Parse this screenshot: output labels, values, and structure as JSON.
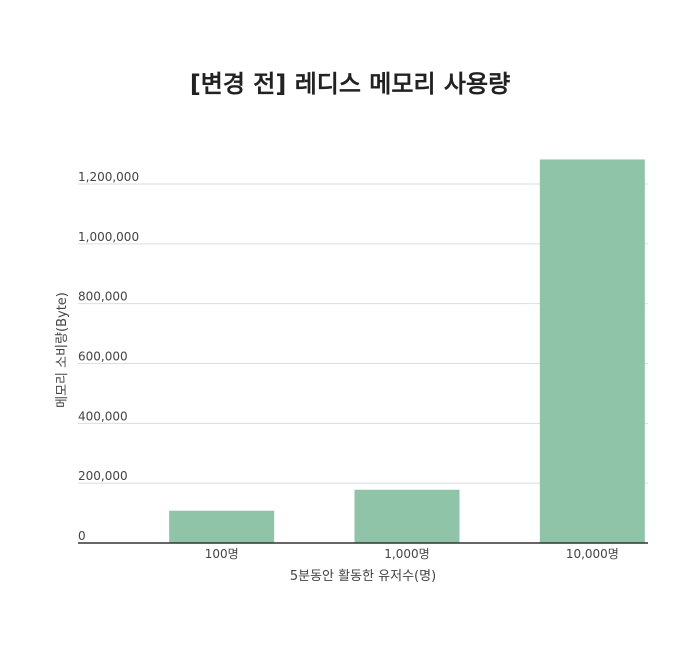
{
  "chart_data": {
    "type": "bar",
    "title": "[변경 전] 레디스 메모리 사용량",
    "xlabel": "5분동안 활동한 유저수(명)",
    "ylabel": "메모리 소비량(Byte)",
    "categories": [
      "100명",
      "1,000명",
      "10,000명"
    ],
    "values": [
      108000,
      178000,
      1282000
    ],
    "yticks": [
      {
        "value": 0,
        "label": "0"
      },
      {
        "value": 200000,
        "label": "200,000"
      },
      {
        "value": 400000,
        "label": "400,000"
      },
      {
        "value": 600000,
        "label": "600,000"
      },
      {
        "value": 800000,
        "label": "800,000"
      },
      {
        "value": 1000000,
        "label": "1,000,000"
      },
      {
        "value": 1200000,
        "label": "1,200,000"
      }
    ],
    "ylim": [
      0,
      1300000
    ],
    "grid": true,
    "legend": "none",
    "bar_color": "#8fc4a8"
  }
}
